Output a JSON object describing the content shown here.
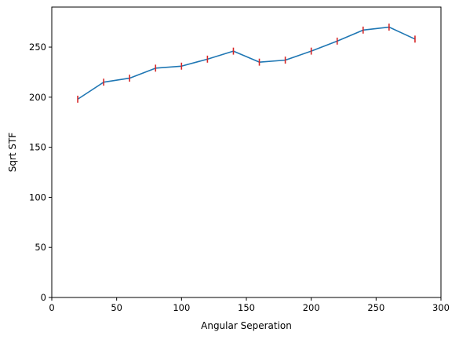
{
  "chart_data": {
    "type": "line",
    "title": "",
    "xlabel": "Angular Seperation",
    "ylabel": "Sqrt STF",
    "xlim": [
      0,
      300
    ],
    "ylim": [
      0,
      290
    ],
    "xticks": [
      0,
      50,
      100,
      150,
      200,
      250,
      300
    ],
    "yticks": [
      0,
      50,
      100,
      150,
      200,
      250
    ],
    "grid": false,
    "legend": "none",
    "series": [
      {
        "color": "#1f77b4",
        "errorbar_color": "#d62728",
        "x": [
          20,
          40,
          60,
          80,
          100,
          120,
          140,
          160,
          180,
          200,
          220,
          240,
          260,
          280
        ],
        "y": [
          198,
          215,
          219,
          229,
          231,
          238,
          246,
          235,
          237,
          246,
          256,
          267,
          270,
          258
        ],
        "yerr": [
          3.5,
          3.5,
          3.5,
          3.5,
          3.5,
          3.5,
          3.5,
          3.5,
          3.5,
          3.5,
          3.5,
          3.5,
          3.5,
          3.5
        ]
      }
    ]
  }
}
